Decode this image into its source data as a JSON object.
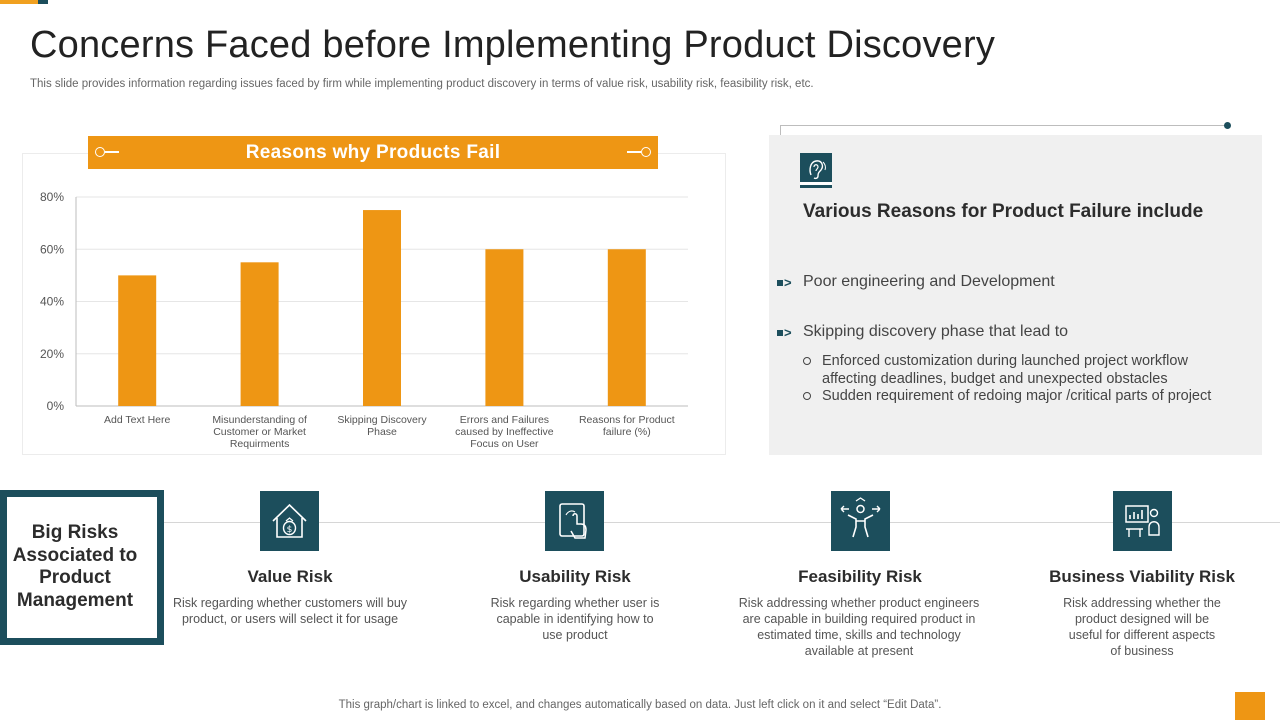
{
  "title": "Concerns Faced before Implementing Product Discovery",
  "subtitle": "This slide provides information regarding issues faced by firm while implementing product discovery in terms of value risk, usability risk, feasibility risk, etc.",
  "chart_data": {
    "type": "bar",
    "title": "Reasons why Products Fail",
    "categories": [
      "Add Text Here",
      "Misunderstanding of Customer or Market Requirments",
      "Skipping Discovery Phase",
      "Errors and Failures caused by Ineffective Focus on User",
      "Reasons for Product failure (%)"
    ],
    "category_lines": [
      [
        "Add Text Here"
      ],
      [
        "Misunderstanding of",
        "Customer or Market",
        "Requirments"
      ],
      [
        "Skipping Discovery",
        "Phase"
      ],
      [
        "Errors and Failures",
        "caused by Ineffective",
        "Focus on User"
      ],
      [
        "Reasons for Product",
        "failure (%)"
      ]
    ],
    "values": [
      50,
      55,
      75,
      60,
      60
    ],
    "ylim": [
      0,
      80
    ],
    "yticks": [
      "0%",
      "20%",
      "40%",
      "60%",
      "80%"
    ],
    "grid": true,
    "bar_color": "#ee9614"
  },
  "panel": {
    "heading": "Various Reasons for Product Failure include",
    "bullet1": "Poor engineering and Development",
    "bullet2": "Skipping discovery phase that lead to",
    "sub1": "Enforced customization during launched project workflow affecting deadlines, budget and unexpected obstacles",
    "sub2": "Sudden requirement of redoing major /critical parts of project"
  },
  "risks": {
    "heading": "Big Risks Associated to Product Management",
    "items": [
      {
        "title": "Value Risk",
        "desc": "Risk regarding whether customers will buy product, or users will select it for usage",
        "icon": "house-money-icon"
      },
      {
        "title": "Usability Risk",
        "desc": "Risk regarding whether user is capable in identifying how to use product",
        "icon": "tablet-touch-icon"
      },
      {
        "title": "Feasibility Risk",
        "desc": "Risk addressing whether product engineers are capable in building required product in estimated time, skills and technology available at present",
        "icon": "person-arrows-icon"
      },
      {
        "title": "Business Viability Risk",
        "desc": "Risk addressing whether the product designed will be useful for different aspects of business",
        "icon": "presentation-board-icon"
      }
    ]
  },
  "footer": "This graph/chart is linked to excel, and changes automatically based on data. Just left click on it and select “Edit Data”.",
  "colors": {
    "accent": "#ee9614",
    "dark": "#1c4e5c"
  }
}
